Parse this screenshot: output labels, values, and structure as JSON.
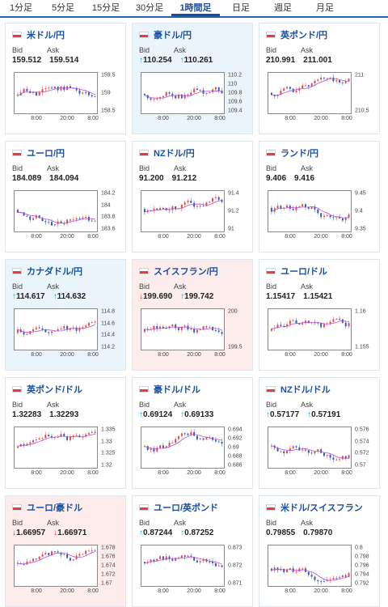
{
  "tabs": [
    {
      "label": "1分足",
      "active": false
    },
    {
      "label": "5分足",
      "active": false
    },
    {
      "label": "15分足",
      "active": false
    },
    {
      "label": "30分足",
      "active": false
    },
    {
      "label": "1時間足",
      "active": true
    },
    {
      "label": "日足",
      "active": false
    },
    {
      "label": "週足",
      "active": false
    },
    {
      "label": "月足",
      "active": false
    }
  ],
  "labels": {
    "bid": "Bid",
    "ask": "Ask"
  },
  "x_labels": [
    "8:00",
    "20:00",
    "8:00"
  ],
  "cards": [
    {
      "pair": "米ドル/円",
      "state": "none",
      "bid": "159.512",
      "ask": "159.514",
      "bid_dir": "",
      "ask_dir": "",
      "yticks": [
        "159.5",
        "159",
        "158.5"
      ]
    },
    {
      "pair": "豪ドル/円",
      "state": "up",
      "bid": "110.254",
      "ask": "110.261",
      "bid_dir": "up",
      "ask_dir": "up",
      "yticks": [
        "110.2",
        "110",
        "109.8",
        "109.6",
        "109.4"
      ]
    },
    {
      "pair": "英ポンド/円",
      "state": "none",
      "bid": "210.991",
      "ask": "211.001",
      "bid_dir": "",
      "ask_dir": "",
      "yticks": [
        "211",
        "210.5"
      ]
    },
    {
      "pair": "ユーロ/円",
      "state": "none",
      "bid": "184.089",
      "ask": "184.094",
      "bid_dir": "",
      "ask_dir": "",
      "yticks": [
        "184.2",
        "184",
        "183.8",
        "183.6"
      ]
    },
    {
      "pair": "NZドル/円",
      "state": "none",
      "bid": "91.200",
      "ask": "91.212",
      "bid_dir": "",
      "ask_dir": "",
      "yticks": [
        "91.4",
        "91.2",
        "91"
      ]
    },
    {
      "pair": "ランド/円",
      "state": "none",
      "bid": "9.406",
      "ask": "9.416",
      "bid_dir": "",
      "ask_dir": "",
      "yticks": [
        "9.45",
        "9.4",
        "9.35"
      ]
    },
    {
      "pair": "カナダドル/円",
      "state": "up",
      "bid": "114.617",
      "ask": "114.632",
      "bid_dir": "up",
      "ask_dir": "up",
      "yticks": [
        "114.8",
        "114.6",
        "114.4",
        "114.2"
      ]
    },
    {
      "pair": "スイスフラン/円",
      "state": "down",
      "bid": "199.690",
      "ask": "199.742",
      "bid_dir": "down",
      "ask_dir": "up",
      "yticks": [
        "200",
        "199.5"
      ]
    },
    {
      "pair": "ユーロ/ドル",
      "state": "none",
      "bid": "1.15417",
      "ask": "1.15421",
      "bid_dir": "",
      "ask_dir": "",
      "yticks": [
        "1.16",
        "1.155"
      ]
    },
    {
      "pair": "英ポンド/ドル",
      "state": "none",
      "bid": "1.32283",
      "ask": "1.32293",
      "bid_dir": "",
      "ask_dir": "",
      "yticks": [
        "1.335",
        "1.33",
        "1.325",
        "1.32"
      ]
    },
    {
      "pair": "豪ドル/ドル",
      "state": "none",
      "bid": "0.69124",
      "ask": "0.69133",
      "bid_dir": "up",
      "ask_dir": "up",
      "yticks": [
        "0.694",
        "0.692",
        "0.69",
        "0.688",
        "0.686"
      ]
    },
    {
      "pair": "NZドル/ドル",
      "state": "none",
      "bid": "0.57177",
      "ask": "0.57191",
      "bid_dir": "up",
      "ask_dir": "up",
      "yticks": [
        "0.576",
        "0.574",
        "0.572",
        "0.57"
      ]
    },
    {
      "pair": "ユーロ/豪ドル",
      "state": "down",
      "bid": "1.66957",
      "ask": "1.66971",
      "bid_dir": "down",
      "ask_dir": "down",
      "yticks": [
        "1.678",
        "1.676",
        "1.674",
        "1.672",
        "1.67"
      ]
    },
    {
      "pair": "ユーロ/英ポンド",
      "state": "none",
      "bid": "0.87244",
      "ask": "0.87252",
      "bid_dir": "up",
      "ask_dir": "up",
      "yticks": [
        "0.873",
        "0.872",
        "0.871"
      ]
    },
    {
      "pair": "米ドル/スイスフラン",
      "state": "none",
      "bid": "0.79855",
      "ask": "0.79870",
      "bid_dir": "",
      "ask_dir": "",
      "yticks": [
        "0.8",
        "0.798",
        "0.796",
        "0.794",
        "0.792"
      ]
    }
  ],
  "colors": {
    "up_bar": "#e24a4a",
    "down_bar": "#2f58b8",
    "ma": "#b84ad6",
    "accent": "#1a4fa0"
  }
}
